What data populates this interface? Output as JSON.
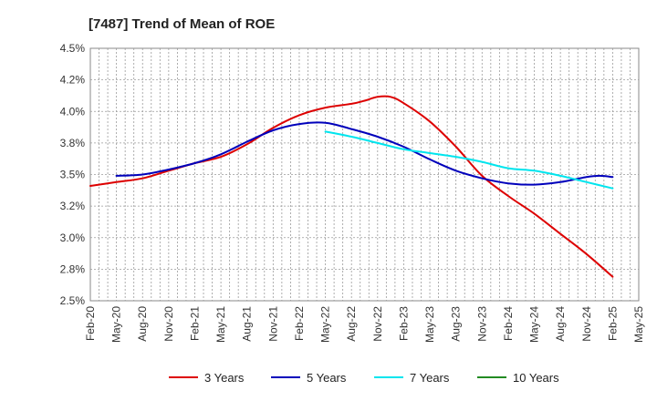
{
  "chart_data": {
    "type": "line",
    "title": "[7487]  Trend of Mean of ROE",
    "xlabel": "",
    "ylabel": "",
    "ylim": [
      2.5,
      4.5
    ],
    "grid": true,
    "legend_position": "bottom",
    "x_ticks": [
      "Feb-20",
      "May-20",
      "Aug-20",
      "Nov-20",
      "Feb-21",
      "May-21",
      "Aug-21",
      "Nov-21",
      "Feb-22",
      "May-22",
      "Aug-22",
      "Nov-22",
      "Feb-23",
      "May-23",
      "Aug-23",
      "Nov-23",
      "Feb-24",
      "May-24",
      "Aug-24",
      "Nov-24",
      "Feb-25",
      "May-25"
    ],
    "y_ticks": [
      2.5,
      2.75,
      3.0,
      3.25,
      3.5,
      3.75,
      4.0,
      4.25,
      4.5
    ],
    "y_tick_labels": [
      "2.5%",
      "2.8%",
      "3.0%",
      "3.2%",
      "3.5%",
      "3.8%",
      "4.0%",
      "4.2%",
      "4.5%"
    ],
    "series": [
      {
        "name": "3 Years",
        "color": "#dd0000",
        "x_index": [
          0,
          1,
          2,
          3,
          4,
          5,
          6,
          7,
          8,
          9,
          10,
          10.5,
          11,
          11.5,
          12,
          13,
          14,
          15,
          16,
          17,
          18,
          19,
          20
        ],
        "values": [
          3.41,
          3.44,
          3.47,
          3.53,
          3.59,
          3.64,
          3.74,
          3.87,
          3.97,
          4.03,
          4.06,
          4.085,
          4.115,
          4.115,
          4.065,
          3.92,
          3.72,
          3.49,
          3.33,
          3.19,
          3.03,
          2.87,
          2.69
        ]
      },
      {
        "name": "5 Years",
        "color": "#0000bb",
        "x_index": [
          1,
          2,
          3,
          4,
          5,
          6,
          7,
          8,
          9,
          10,
          11,
          12,
          13,
          14,
          15,
          16,
          17,
          18,
          19,
          19.5,
          20
        ],
        "values": [
          3.49,
          3.5,
          3.54,
          3.59,
          3.66,
          3.76,
          3.85,
          3.9,
          3.91,
          3.86,
          3.8,
          3.72,
          3.62,
          3.53,
          3.47,
          3.43,
          3.42,
          3.44,
          3.48,
          3.49,
          3.48
        ]
      },
      {
        "name": "7 Years",
        "color": "#00e5ee",
        "x_index": [
          9,
          10,
          11,
          12,
          13,
          14,
          15,
          16,
          17,
          18,
          19,
          20
        ],
        "values": [
          3.84,
          3.8,
          3.75,
          3.7,
          3.67,
          3.64,
          3.6,
          3.55,
          3.53,
          3.49,
          3.44,
          3.39
        ]
      },
      {
        "name": "10 Years",
        "color": "#228b22",
        "x_index": [],
        "values": []
      }
    ]
  }
}
